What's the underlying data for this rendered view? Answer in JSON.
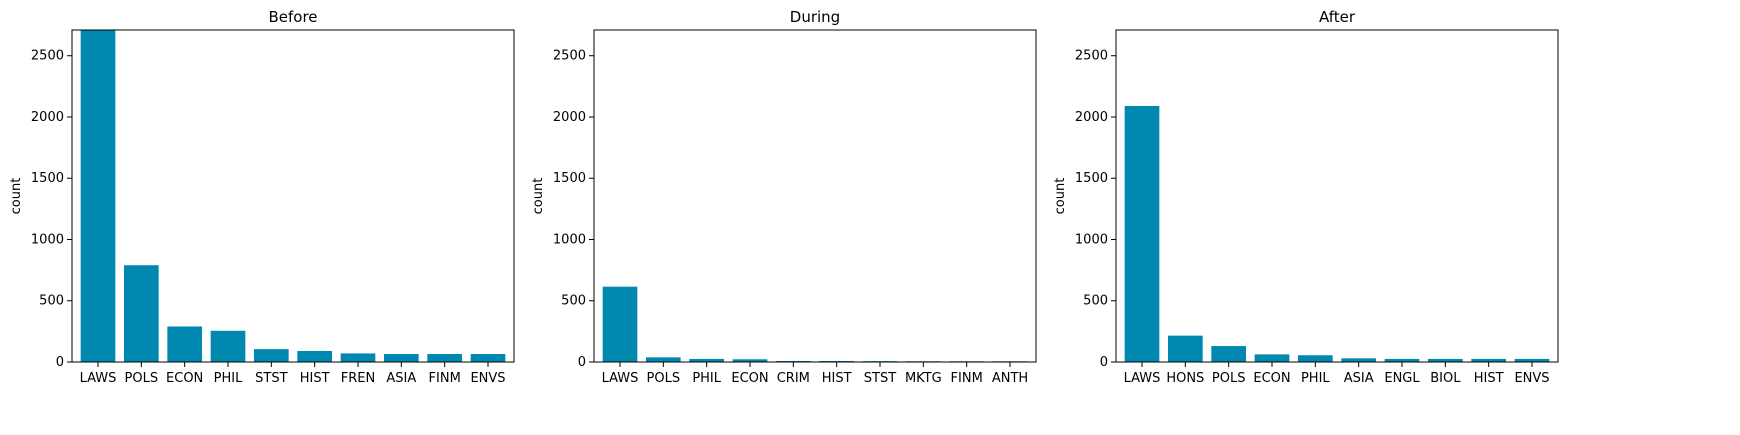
{
  "chart_data": [
    {
      "type": "bar",
      "title": "Before",
      "xlabel": "",
      "ylabel": "count",
      "ylim": [
        0,
        2710
      ],
      "yticks": [
        0,
        500,
        1000,
        1500,
        2000,
        2500
      ],
      "grid": false,
      "bar_color": "#0088b0",
      "categories": [
        "LAWS",
        "POLS",
        "ECON",
        "PHIL",
        "STST",
        "HIST",
        "FREN",
        "ASIA",
        "FINM",
        "ENVS"
      ],
      "values": [
        2710,
        790,
        290,
        255,
        105,
        90,
        70,
        65,
        65,
        65
      ]
    },
    {
      "type": "bar",
      "title": "During",
      "xlabel": "",
      "ylabel": "count",
      "ylim": [
        0,
        2710
      ],
      "yticks": [
        0,
        500,
        1000,
        1500,
        2000,
        2500
      ],
      "grid": false,
      "bar_color": "#0088b0",
      "categories": [
        "LAWS",
        "POLS",
        "PHIL",
        "ECON",
        "CRIM",
        "HIST",
        "STST",
        "MKTG",
        "FINM",
        "ANTH"
      ],
      "values": [
        615,
        38,
        25,
        22,
        8,
        8,
        7,
        6,
        6,
        6
      ]
    },
    {
      "type": "bar",
      "title": "After",
      "xlabel": "",
      "ylabel": "count",
      "ylim": [
        0,
        2710
      ],
      "yticks": [
        0,
        500,
        1000,
        1500,
        2000,
        2500
      ],
      "grid": false,
      "bar_color": "#0088b0",
      "categories": [
        "LAWS",
        "HONS",
        "POLS",
        "ECON",
        "PHIL",
        "ASIA",
        "ENGL",
        "BIOL",
        "HIST",
        "ENVS"
      ],
      "values": [
        2090,
        215,
        130,
        62,
        55,
        30,
        25,
        25,
        25,
        25
      ]
    }
  ]
}
